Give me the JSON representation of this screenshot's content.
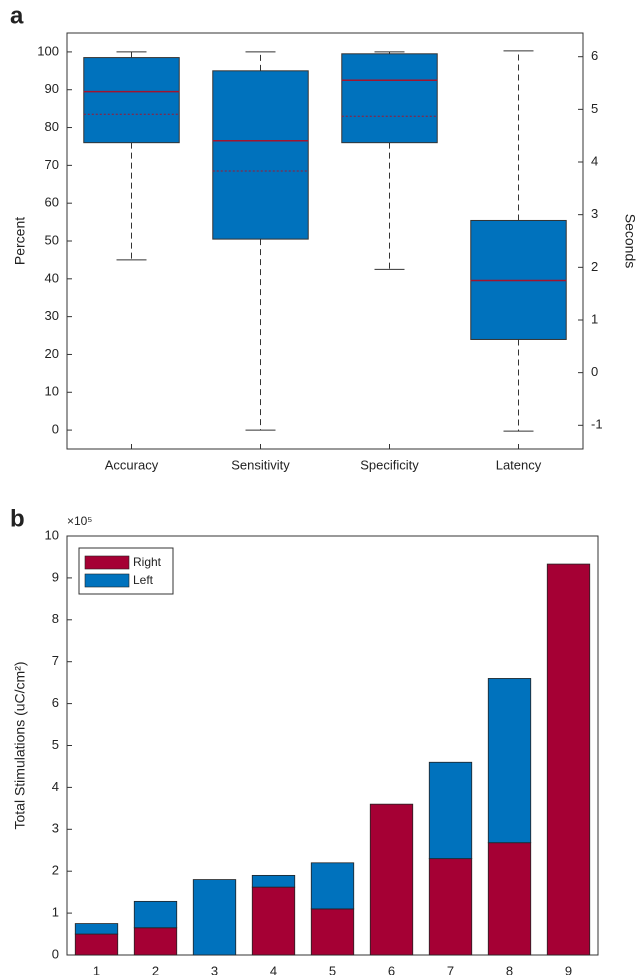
{
  "chart_data": [
    {
      "type": "box",
      "panel_label": "a",
      "ylabel": "Percent",
      "y2label": "Seconds",
      "categories": [
        "Accuracy",
        "Sensitivity",
        "Specificity",
        "Latency"
      ],
      "color": "#0072bd",
      "median_color": "#a2142f",
      "boxes": [
        {
          "min": 45,
          "q1": 76,
          "median": 89.5,
          "mean": 83.5,
          "q3": 98.5,
          "max": 100
        },
        {
          "min": 0,
          "q1": 50.5,
          "median": 76.5,
          "mean": 68.5,
          "q3": 95,
          "max": 100
        },
        {
          "min": 42.5,
          "q1": 76,
          "median": 92.5,
          "mean": 83,
          "q3": 99.5,
          "max": 100
        },
        {
          "min": -1.11,
          "q1": 0.63,
          "median": 1.75,
          "mean": 1.75,
          "q3": 2.89,
          "max": 6.11,
          "axis": "y2"
        }
      ],
      "ylim": [
        -5,
        105
      ],
      "yticks": [
        0,
        10,
        20,
        30,
        40,
        50,
        60,
        70,
        80,
        90,
        100
      ],
      "y2lim": [
        -1.45,
        6.45
      ],
      "y2ticks": [
        -1,
        0,
        1,
        2,
        3,
        4,
        5,
        6
      ],
      "grid": false
    },
    {
      "type": "bar",
      "stacked": true,
      "panel_label": "b",
      "ylabel": "Total Stimulations (uC/cm²)",
      "y_multiplier": "×10⁵",
      "legend": "upper left",
      "categories": [
        "1",
        "2",
        "3",
        "4",
        "5",
        "6",
        "7",
        "8",
        "9"
      ],
      "series": [
        {
          "name": "Right",
          "color": "#a50034",
          "values": [
            0.5,
            0.65,
            0,
            1.62,
            1.1,
            3.6,
            2.3,
            2.68,
            9.33
          ]
        },
        {
          "name": "Left",
          "color": "#0072bd",
          "values": [
            0.25,
            0.63,
            1.8,
            0.28,
            1.1,
            0,
            2.3,
            3.92,
            0
          ]
        }
      ],
      "ylim": [
        0,
        10
      ],
      "yticks": [
        0,
        1,
        2,
        3,
        4,
        5,
        6,
        7,
        8,
        9,
        10
      ],
      "grid": false
    }
  ]
}
